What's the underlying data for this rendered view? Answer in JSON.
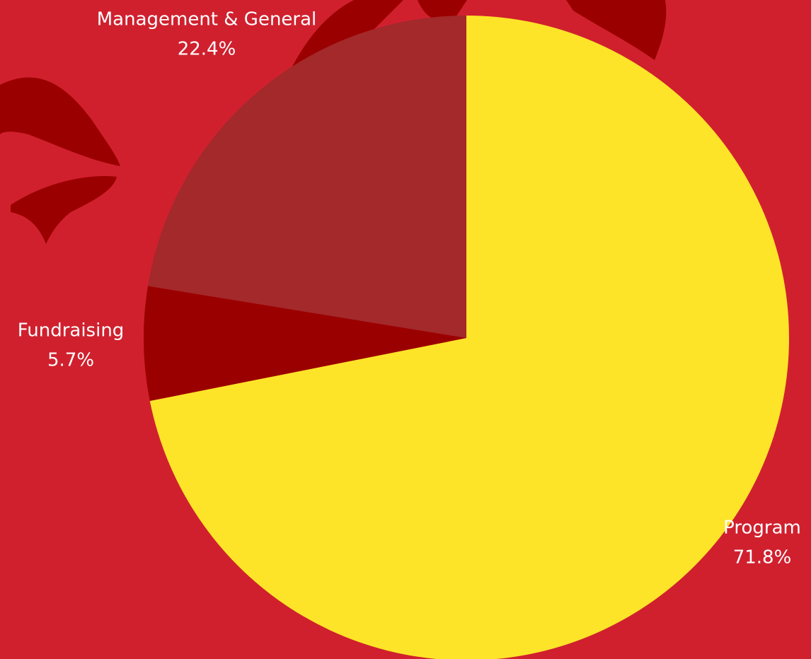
{
  "chart_data": {
    "type": "pie",
    "categories": [
      "Program",
      "Fundraising",
      "Management & General"
    ],
    "values": [
      71.8,
      5.7,
      22.4
    ],
    "value_labels": [
      "71.8%",
      "5.7%",
      "22.4%"
    ],
    "colors": [
      "#fde428",
      "#9b0000",
      "#a3292b"
    ]
  }
}
